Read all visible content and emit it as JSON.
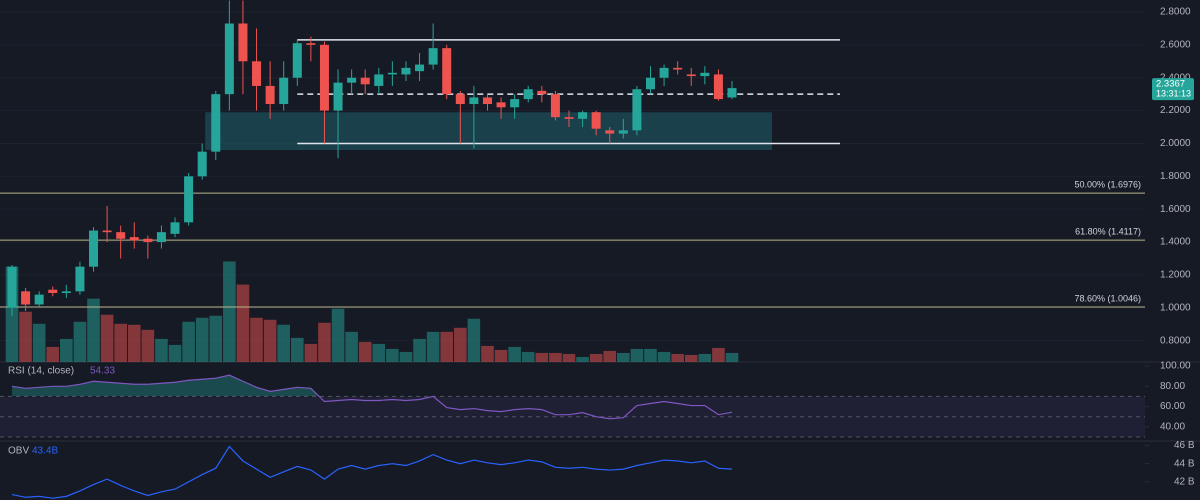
{
  "chart_data": {
    "type": "candlestick",
    "up_color": "#26a69a",
    "down_color": "#ef5350",
    "open": [
      1.0,
      1.1,
      1.02,
      1.11,
      1.09,
      1.1,
      1.25,
      1.47,
      1.46,
      1.43,
      1.42,
      1.4,
      1.45,
      1.52,
      1.8,
      1.95,
      2.3,
      2.73,
      2.5,
      2.35,
      2.24,
      2.4,
      2.61,
      2.6,
      2.2,
      2.37,
      2.4,
      2.35,
      2.42,
      2.42,
      2.44,
      2.48,
      2.58,
      2.3,
      2.24,
      2.28,
      2.25,
      2.22,
      2.27,
      2.32,
      2.3,
      2.16,
      2.15,
      2.19,
      2.08,
      2.06,
      2.08,
      2.33,
      2.4,
      2.46,
      2.42,
      2.41,
      2.42,
      2.28
    ],
    "high": [
      1.26,
      1.12,
      1.1,
      1.13,
      1.14,
      1.28,
      1.49,
      1.62,
      1.5,
      1.52,
      1.44,
      1.5,
      1.55,
      1.82,
      2.0,
      2.32,
      2.87,
      2.87,
      2.7,
      2.5,
      2.5,
      2.63,
      2.65,
      2.62,
      2.45,
      2.45,
      2.45,
      2.46,
      2.5,
      2.5,
      2.55,
      2.73,
      2.6,
      2.32,
      2.35,
      2.3,
      2.28,
      2.3,
      2.35,
      2.35,
      2.32,
      2.2,
      2.2,
      2.2,
      2.1,
      2.15,
      2.35,
      2.47,
      2.48,
      2.5,
      2.46,
      2.47,
      2.45,
      2.38
    ],
    "low": [
      0.95,
      0.98,
      1.0,
      1.07,
      1.06,
      1.08,
      1.22,
      1.4,
      1.3,
      1.36,
      1.3,
      1.36,
      1.43,
      1.5,
      1.78,
      1.9,
      2.2,
      2.3,
      2.2,
      2.15,
      2.2,
      2.35,
      2.5,
      2.0,
      1.91,
      2.3,
      2.3,
      2.3,
      2.35,
      2.38,
      2.38,
      2.45,
      2.27,
      2.0,
      1.97,
      2.2,
      2.15,
      2.15,
      2.25,
      2.25,
      2.14,
      2.1,
      2.1,
      2.05,
      2.0,
      2.03,
      2.05,
      2.3,
      2.35,
      2.42,
      2.35,
      2.36,
      2.26,
      2.27
    ],
    "close": [
      1.25,
      1.02,
      1.08,
      1.09,
      1.1,
      1.25,
      1.47,
      1.46,
      1.42,
      1.41,
      1.4,
      1.46,
      1.52,
      1.8,
      1.95,
      2.3,
      2.73,
      2.5,
      2.35,
      2.24,
      2.4,
      2.61,
      2.6,
      2.2,
      2.37,
      2.4,
      2.36,
      2.42,
      2.43,
      2.46,
      2.48,
      2.58,
      2.3,
      2.24,
      2.28,
      2.24,
      2.22,
      2.27,
      2.33,
      2.3,
      2.16,
      2.15,
      2.19,
      2.09,
      2.06,
      2.08,
      2.33,
      2.4,
      2.46,
      2.45,
      2.41,
      2.43,
      2.27,
      2.3367
    ],
    "volume": [
      95,
      50,
      38,
      15,
      23,
      40,
      63,
      47,
      38,
      37,
      32,
      23,
      17,
      40,
      44,
      46,
      100,
      77,
      44,
      42,
      37,
      24,
      18,
      39,
      53,
      30,
      20,
      18,
      13,
      10,
      23,
      30,
      30,
      34,
      43,
      16,
      12,
      15,
      10,
      9,
      9,
      8,
      5,
      8,
      11,
      9,
      13,
      13,
      10,
      8,
      7,
      8,
      14,
      9
    ],
    "volume_ylim": [
      0,
      360
    ],
    "ylim": [
      0.67,
      2.873
    ],
    "yticks": [
      {
        "value": 2.8,
        "label": "2.8000"
      },
      {
        "value": 2.6,
        "label": "2.6000"
      },
      {
        "value": 2.4,
        "label": "2.4000"
      },
      {
        "value": 2.2,
        "label": "2.2000"
      },
      {
        "value": 2.0,
        "label": "2.0000"
      },
      {
        "value": 1.8,
        "label": "1.8000"
      },
      {
        "value": 1.6,
        "label": "1.6000"
      },
      {
        "value": 1.4,
        "label": "1.4000"
      },
      {
        "value": 1.2,
        "label": "1.2000"
      },
      {
        "value": 1.0,
        "label": "1.0000"
      },
      {
        "value": 0.8,
        "label": "0.8000"
      }
    ],
    "channel": {
      "top": 2.63,
      "middle": 2.3,
      "bottom": 2.0
    },
    "zone": {
      "top": 2.19,
      "bottom": 1.96
    },
    "fib_levels": [
      {
        "label": "50.00% (1.6976)",
        "value": 1.6976
      },
      {
        "label": "61.80% (1.4117)",
        "value": 1.4117
      },
      {
        "label": "78.60% (1.0046)",
        "value": 1.0046
      }
    ],
    "countdown": "13:31:13",
    "rsi": {
      "label": "RSI (14, close)",
      "color": "#7e57c2",
      "values": [
        80,
        78,
        79,
        80,
        80,
        82,
        85,
        84,
        83,
        82,
        82,
        83,
        84,
        86,
        87,
        88,
        91,
        85,
        79,
        75,
        77,
        79,
        78,
        65,
        66,
        67,
        66,
        66,
        67,
        66,
        67,
        70,
        59,
        57,
        58,
        56,
        55,
        57,
        58,
        57,
        52,
        52,
        54,
        50,
        48,
        49,
        61,
        63,
        65,
        63,
        61,
        61,
        52,
        54.33
      ],
      "ylim": [
        26,
        104
      ],
      "yticks": [
        {
          "value": 100,
          "label": "100.00"
        },
        {
          "value": 80,
          "label": "80.00"
        },
        {
          "value": 60,
          "label": "60.00"
        },
        {
          "value": 40,
          "label": "40.00"
        }
      ],
      "upper": 70,
      "middle": 50,
      "lower": 30
    },
    "obv": {
      "label": "OBV",
      "last_value_label": "43.4B",
      "color": "#2962ff",
      "values": [
        40.6,
        40.3,
        40.4,
        40.2,
        40.4,
        41.0,
        41.7,
        42.3,
        41.6,
        41.0,
        40.5,
        40.9,
        41.2,
        42.0,
        42.8,
        43.5,
        45.9,
        44.3,
        43.4,
        42.5,
        43.1,
        43.7,
        43.3,
        42.3,
        43.4,
        43.8,
        43.4,
        43.8,
        44.0,
        43.8,
        44.3,
        45.0,
        44.4,
        44.0,
        44.4,
        44.1,
        43.9,
        44.1,
        44.4,
        44.2,
        43.6,
        43.5,
        43.6,
        43.4,
        43.3,
        43.4,
        43.8,
        44.1,
        44.4,
        44.3,
        44.1,
        44.3,
        43.5,
        43.4
      ],
      "ylim": [
        40.0,
        46.5
      ],
      "yticks": [
        {
          "value": 46,
          "label": "46 B"
        },
        {
          "value": 44,
          "label": "44 B"
        },
        {
          "value": 42,
          "label": "42 B"
        }
      ]
    }
  }
}
